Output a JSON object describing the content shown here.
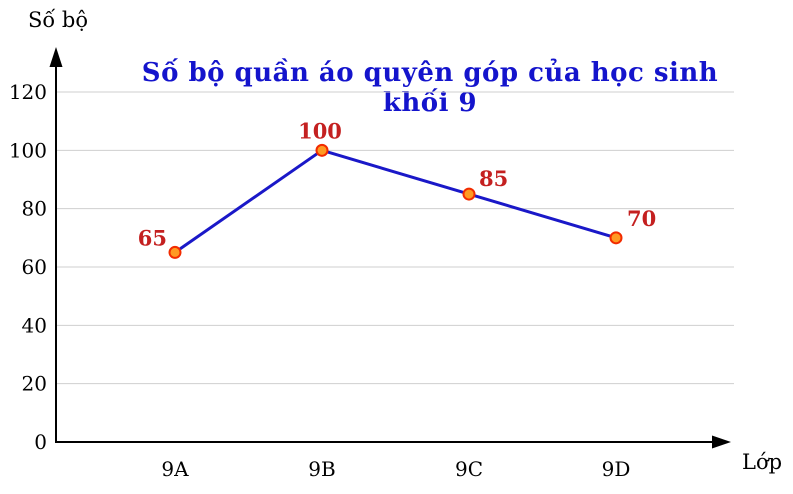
{
  "chart_data": {
    "type": "line",
    "title": "Số bộ quần áo quyên góp của học sinh khối 9",
    "xlabel": "Lớp",
    "ylabel": "Số bộ",
    "categories": [
      "9A",
      "9B",
      "9C",
      "9D"
    ],
    "values": [
      65,
      100,
      85,
      70
    ],
    "point_labels": [
      "65",
      "100",
      "85",
      "70"
    ],
    "yticks": [
      0,
      20,
      40,
      60,
      80,
      100,
      120
    ],
    "ylim": [
      0,
      130
    ],
    "grid": true,
    "legend_position": "none",
    "colors": {
      "title": "#1414cc",
      "line": "#1a18c8",
      "marker_fill": "#ff9a22",
      "marker_stroke": "#f22b00",
      "value_label": "#c42020",
      "grid": "#cfcfcf",
      "axis": "#000000",
      "tick_text": "#000000"
    }
  }
}
